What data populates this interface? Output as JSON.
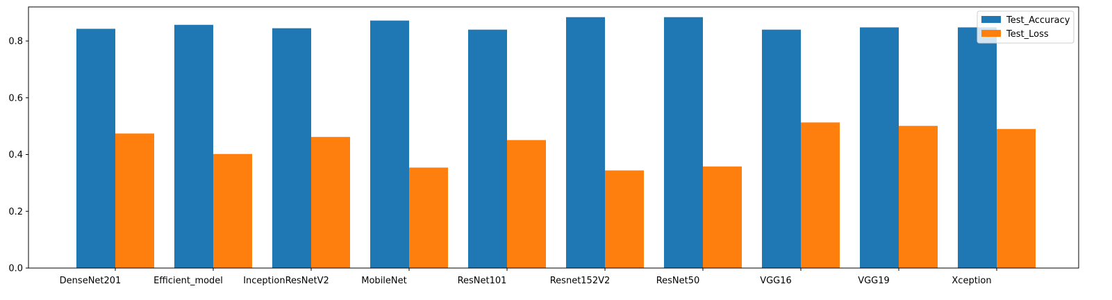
{
  "chart_data": {
    "type": "bar",
    "title": "",
    "xlabel": "",
    "ylabel": "",
    "categories": [
      "DenseNet201",
      "Efficient_model",
      "InceptionResNetV2",
      "MobileNet",
      "ResNet101",
      "Resnet152V2",
      "ResNet50",
      "VGG16",
      "VGG19",
      "Xception"
    ],
    "series": [
      {
        "name": "Test_Accuracy",
        "color": "#1f77b4",
        "values": [
          0.843,
          0.857,
          0.845,
          0.872,
          0.84,
          0.884,
          0.884,
          0.84,
          0.848,
          0.848
        ]
      },
      {
        "name": "Test_Loss",
        "color": "#ff7f0e",
        "values": [
          0.474,
          0.402,
          0.462,
          0.354,
          0.451,
          0.344,
          0.358,
          0.513,
          0.501,
          0.49
        ]
      }
    ],
    "ylim": [
      0,
      0.92
    ],
    "yticks": [
      0.0,
      0.2,
      0.4,
      0.6,
      0.8
    ],
    "ytick_labels": [
      "0.0",
      "0.2",
      "0.4",
      "0.6",
      "0.8"
    ],
    "grid": false,
    "legend_position": "top-right"
  }
}
